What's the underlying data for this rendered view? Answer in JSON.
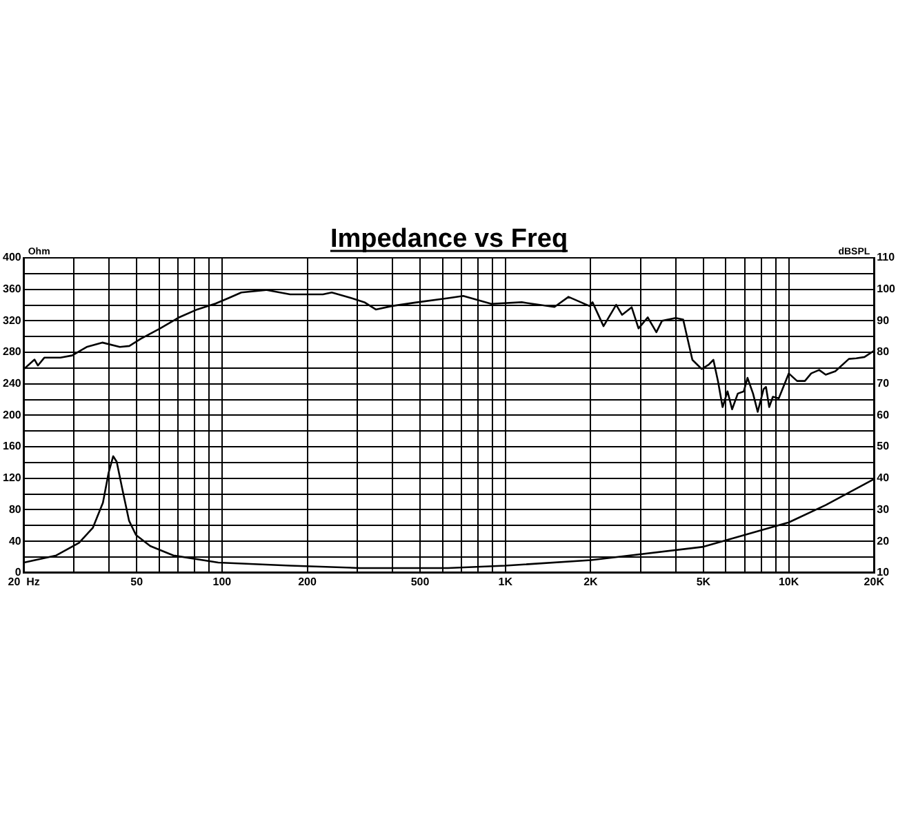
{
  "chart_data": {
    "type": "line",
    "title": "Impedance vs Freq",
    "ylabel": "Ohm",
    "y2label": "dBSPL",
    "log": "x",
    "grid": true,
    "legend": false,
    "marker": "none",
    "line_style": "solid",
    "xlim": [
      20,
      20000
    ],
    "xticks": [
      {
        "value": 20,
        "label": "20  Hz"
      },
      {
        "value": 30,
        "label": null
      },
      {
        "value": 40,
        "label": null
      },
      50,
      {
        "value": 60,
        "label": null
      },
      {
        "value": 70,
        "label": null
      },
      {
        "value": 80,
        "label": null
      },
      {
        "value": 90,
        "label": null
      },
      100,
      200,
      {
        "value": 300,
        "label": null
      },
      {
        "value": 400,
        "label": null
      },
      500,
      {
        "value": 600,
        "label": null
      },
      {
        "value": 700,
        "label": null
      },
      {
        "value": 800,
        "label": null
      },
      {
        "value": 900,
        "label": null
      },
      {
        "value": 1000,
        "label": "1K"
      },
      {
        "value": 2000,
        "label": "2K"
      },
      {
        "value": 3000,
        "label": null
      },
      {
        "value": 4000,
        "label": null
      },
      {
        "value": 5000,
        "label": "5K"
      },
      {
        "value": 6000,
        "label": null
      },
      {
        "value": 7000,
        "label": null
      },
      {
        "value": 8000,
        "label": null
      },
      {
        "value": 9000,
        "label": null
      },
      {
        "value": 10000,
        "label": "10K"
      },
      {
        "value": 20000,
        "label": "20K"
      }
    ],
    "ylim": [
      0,
      400
    ],
    "yticks": [
      0,
      {
        "value": 20,
        "label": null
      },
      40,
      {
        "value": 60,
        "label": null
      },
      80,
      {
        "value": 100,
        "label": null
      },
      120,
      {
        "value": 140,
        "label": null
      },
      160,
      {
        "value": 180,
        "label": null
      },
      200,
      {
        "value": 220,
        "label": null
      },
      240,
      {
        "value": 260,
        "label": null
      },
      280,
      {
        "value": 300,
        "label": null
      },
      320,
      {
        "value": 340,
        "label": null
      },
      360,
      {
        "value": 380,
        "label": null
      },
      400
    ],
    "y2lim": [
      10,
      110
    ],
    "y2ticks": [
      10,
      20,
      30,
      40,
      50,
      60,
      70,
      80,
      90,
      100,
      110
    ],
    "series": [
      {
        "color": "#000000",
        "x": [
          20,
          26,
          31.3,
          35,
          38,
          39.8,
          41.3,
          42.5,
          44.5,
          47,
          49.7,
          55.8,
          67.4,
          97,
          174,
          306,
          627,
          1000,
          2000,
          5000,
          10000,
          13500,
          20000
        ],
        "values": [
          13,
          22,
          38,
          57,
          89,
          127,
          148,
          141,
          106,
          66,
          48,
          34,
          22,
          13,
          9,
          6,
          6,
          9,
          16,
          33,
          64,
          86,
          119
        ]
      },
      {
        "color": "#000000",
        "axis": "y2",
        "x": [
          20,
          21.8,
          22.4,
          23.6,
          26.9,
          29.6,
          33.3,
          37.8,
          43.6,
          47.1,
          51.7,
          60.2,
          70.2,
          81.7,
          95,
          106,
          117,
          143,
          174,
          227,
          244,
          284,
          318,
          349,
          398,
          481,
          627,
          710,
          892,
          1142,
          1490,
          1670,
          1980,
          2030,
          2220,
          2460,
          2580,
          2790,
          2950,
          3180,
          3410,
          3570,
          3990,
          4240,
          4570,
          4930,
          5220,
          5420,
          5630,
          5840,
          6080,
          6310,
          6610,
          6940,
          7150,
          7480,
          7770,
          8150,
          8310,
          8530,
          8790,
          9220,
          10000,
          10700,
          11400,
          12000,
          12800,
          13500,
          14600,
          16300,
          17300,
          18500,
          20000
        ],
        "values": [
          74.7,
          77.7,
          75.8,
          78.3,
          78.3,
          79,
          81.7,
          83.1,
          81.7,
          82,
          84.3,
          87.5,
          91,
          93.6,
          95.5,
          97.3,
          99,
          99.8,
          98.4,
          98.4,
          99,
          97.3,
          95.9,
          93.6,
          94.7,
          95.8,
          97.2,
          97.9,
          95.4,
          95.9,
          94.4,
          97.6,
          94.7,
          95.9,
          88.3,
          95.1,
          91.9,
          94.3,
          87.6,
          91.1,
          86.4,
          90,
          90.9,
          90.4,
          77.6,
          74.7,
          76.1,
          77.6,
          70.7,
          62.6,
          67.6,
          61.9,
          66.9,
          67.6,
          71.9,
          66.9,
          61.1,
          68.3,
          69,
          62.6,
          65.9,
          65.4,
          73.3,
          70.9,
          70.9,
          73.3,
          74.4,
          72.9,
          74,
          77.9,
          78.1,
          78.5,
          80.5
        ]
      }
    ]
  }
}
